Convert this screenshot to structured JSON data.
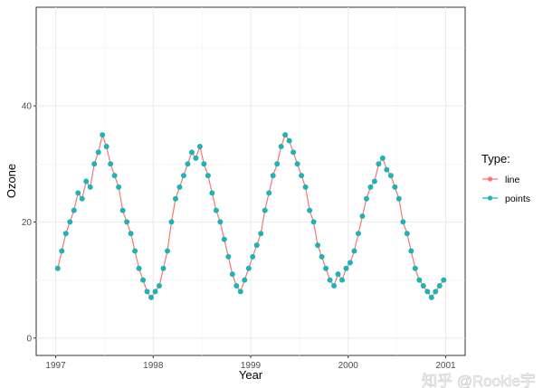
{
  "chart_data": {
    "type": "line",
    "title": "",
    "xlabel": "Year",
    "ylabel": "Ozone",
    "xlim": [
      1996.8,
      2001.2
    ],
    "ylim": [
      -3,
      57
    ],
    "x_ticks": [
      "1997",
      "1998",
      "1999",
      "2000",
      "2001"
    ],
    "y_ticks": [
      "0",
      "20",
      "40"
    ],
    "grid": true,
    "legend": {
      "title": "Type:",
      "position": "right",
      "entries": [
        "line",
        "points"
      ]
    },
    "colors": {
      "line": "#F8766D",
      "points": "#1FB3B8"
    },
    "series": [
      {
        "name": "Ozone",
        "start_year": 1997,
        "points_per_year": 24,
        "values": [
          12,
          15,
          18,
          20,
          22,
          25,
          24,
          27,
          26,
          30,
          32,
          35,
          33,
          30,
          28,
          26,
          22,
          20,
          18,
          15,
          12,
          10,
          8,
          7,
          8,
          9,
          12,
          15,
          20,
          24,
          26,
          28,
          30,
          32,
          31,
          33,
          30,
          28,
          25,
          22,
          20,
          17,
          14,
          11,
          9,
          8,
          10,
          12,
          14,
          16,
          18,
          22,
          25,
          28,
          30,
          33,
          35,
          34,
          32,
          30,
          28,
          26,
          22,
          20,
          16,
          14,
          12,
          10,
          9,
          11,
          10,
          12,
          13,
          15,
          18,
          21,
          24,
          26,
          27,
          30,
          31,
          29,
          28,
          26,
          24,
          20,
          18,
          15,
          12,
          10,
          9,
          8,
          7,
          8,
          9,
          10
        ]
      }
    ]
  },
  "watermark": "知乎 @Rookie宇"
}
